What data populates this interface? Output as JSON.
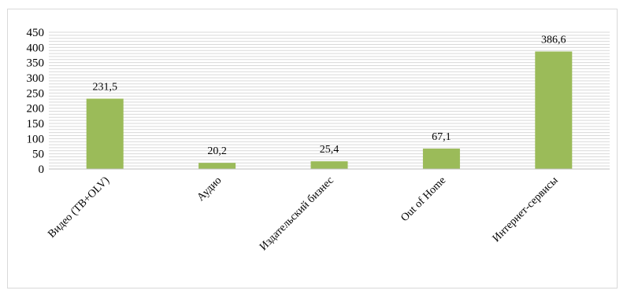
{
  "chart_data": {
    "type": "bar",
    "categories": [
      "Видео (ТВ+OLV)",
      "Аудио",
      "Издательский бизнес",
      "Out of Home",
      "Интернет-сервисы"
    ],
    "values": [
      231.5,
      20.2,
      25.4,
      67.1,
      386.6
    ],
    "data_labels": [
      "231,5",
      "20,2",
      "25,4",
      "67,1",
      "386,6"
    ],
    "yticks": [
      0,
      50,
      100,
      150,
      200,
      250,
      300,
      350,
      400,
      450
    ],
    "ylim": [
      0,
      450
    ],
    "grid": true,
    "legend": "none",
    "title": "",
    "xlabel": "",
    "ylabel": "",
    "bar_color": "#9bbb59",
    "grid_color": "#d9d9d9"
  }
}
